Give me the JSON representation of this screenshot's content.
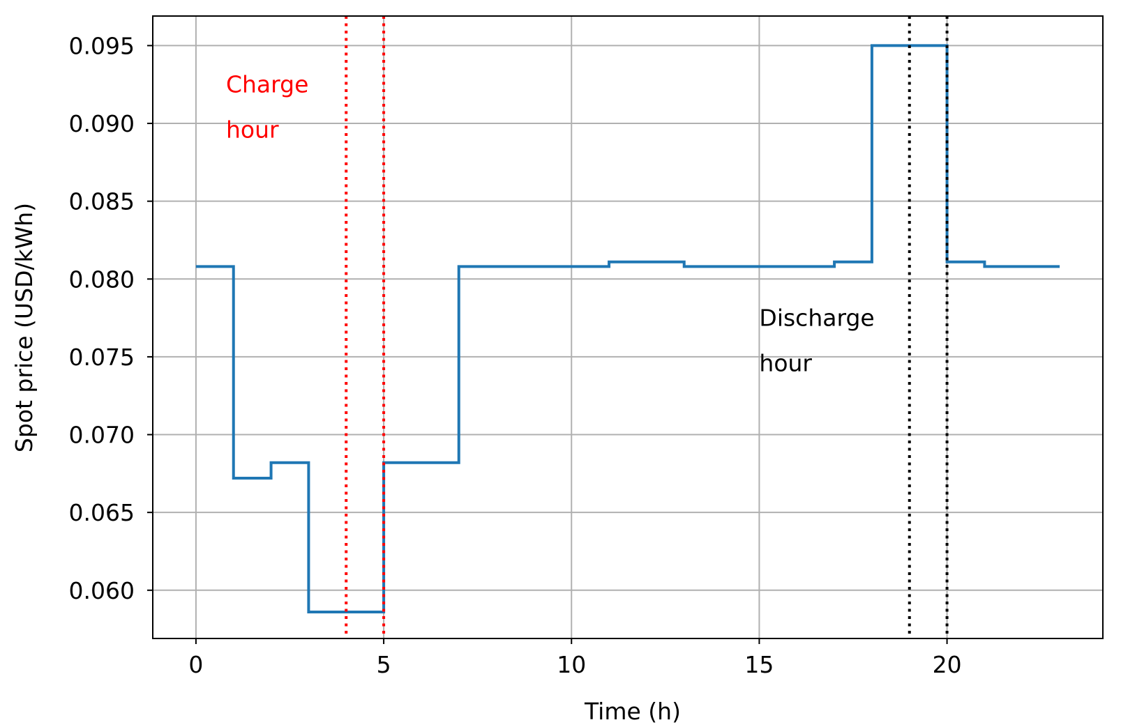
{
  "chart_data": {
    "type": "line",
    "drawstyle": "steps-post",
    "xlabel": "Time (h)",
    "ylabel": "Spot price (USD/kWh)",
    "xlim": [
      -1.15,
      24.15
    ],
    "ylim": [
      0.0569,
      0.0969
    ],
    "xticks": [
      0,
      5,
      10,
      15,
      20
    ],
    "xtick_labels": [
      "0",
      "5",
      "10",
      "15",
      "20"
    ],
    "yticks": [
      0.06,
      0.065,
      0.07,
      0.075,
      0.08,
      0.085,
      0.09,
      0.095
    ],
    "ytick_labels": [
      "0.060",
      "0.065",
      "0.070",
      "0.075",
      "0.080",
      "0.085",
      "0.090",
      "0.095"
    ],
    "grid": true,
    "series": [
      {
        "color": "#1f77b4",
        "x": [
          0,
          1,
          2,
          3,
          4,
          5,
          6,
          7,
          8,
          9,
          10,
          11,
          12,
          13,
          14,
          15,
          16,
          17,
          18,
          19,
          20,
          21,
          22,
          23
        ],
        "values": [
          0.0808,
          0.0672,
          0.0682,
          0.0586,
          0.0586,
          0.0682,
          0.0682,
          0.0808,
          0.0808,
          0.0808,
          0.0808,
          0.0811,
          0.0811,
          0.0808,
          0.0808,
          0.0808,
          0.0808,
          0.0811,
          0.095,
          0.095,
          0.0811,
          0.0808,
          0.0808,
          0.0808
        ]
      }
    ],
    "vlines": [
      {
        "x": 4,
        "color": "#ff0000",
        "style": "dotted"
      },
      {
        "x": 5,
        "color": "#ff0000",
        "style": "dotted"
      },
      {
        "x": 19,
        "color": "#000000",
        "style": "dotted"
      },
      {
        "x": 20,
        "color": "#000000",
        "style": "dotted"
      }
    ],
    "annotations": [
      {
        "name": "charge-hour-label",
        "lines": [
          "Charge",
          "hour"
        ],
        "color": "#ff0000",
        "x": 0.8,
        "y": 0.092
      },
      {
        "name": "discharge-hour-label",
        "lines": [
          "Discharge",
          "hour"
        ],
        "color": "#000000",
        "x": 15.0,
        "y": 0.077
      }
    ]
  }
}
